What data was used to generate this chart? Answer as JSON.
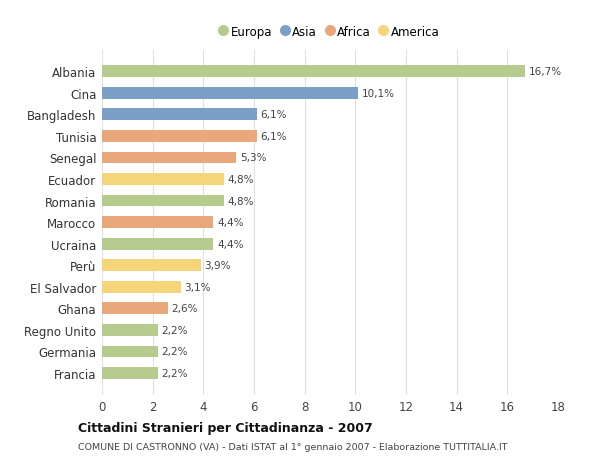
{
  "countries": [
    "Francia",
    "Germania",
    "Regno Unito",
    "Ghana",
    "El Salvador",
    "Perù",
    "Ucraina",
    "Marocco",
    "Romania",
    "Ecuador",
    "Senegal",
    "Tunisia",
    "Bangladesh",
    "Cina",
    "Albania"
  ],
  "values": [
    2.2,
    2.2,
    2.2,
    2.6,
    3.1,
    3.9,
    4.4,
    4.4,
    4.8,
    4.8,
    5.3,
    6.1,
    6.1,
    10.1,
    16.7
  ],
  "labels": [
    "2,2%",
    "2,2%",
    "2,2%",
    "2,6%",
    "3,1%",
    "3,9%",
    "4,4%",
    "4,4%",
    "4,8%",
    "4,8%",
    "5,3%",
    "6,1%",
    "6,1%",
    "10,1%",
    "16,7%"
  ],
  "colors": [
    "#b5cc8e",
    "#b5cc8e",
    "#b5cc8e",
    "#e8a87c",
    "#f5d57a",
    "#f5d57a",
    "#b5cc8e",
    "#e8a87c",
    "#b5cc8e",
    "#f5d57a",
    "#e8a87c",
    "#e8a87c",
    "#7b9fc7",
    "#7b9fc7",
    "#b5cc8e"
  ],
  "legend_labels": [
    "Europa",
    "Asia",
    "Africa",
    "America"
  ],
  "legend_colors": [
    "#b5cc8e",
    "#7b9fc7",
    "#e8a87c",
    "#f5d57a"
  ],
  "title": "Cittadini Stranieri per Cittadinanza - 2007",
  "subtitle": "COMUNE DI CASTRONNO (VA) - Dati ISTAT al 1° gennaio 2007 - Elaborazione TUTTITALIA.IT",
  "xlim": [
    0,
    18
  ],
  "xticks": [
    0,
    2,
    4,
    6,
    8,
    10,
    12,
    14,
    16,
    18
  ],
  "background_color": "#ffffff",
  "grid_color": "#e0e0e0"
}
